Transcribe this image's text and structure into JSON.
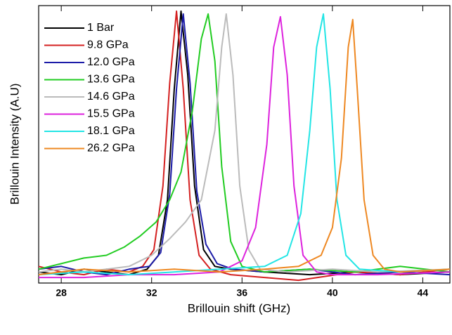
{
  "chart_data": {
    "type": "line",
    "x_label": "Brillouin shift (GHz)",
    "y_label": "Brillouin Intensity (A.U)",
    "xlim": [
      27,
      45.2
    ],
    "ylim": [
      0,
      1
    ],
    "xticks": [
      28,
      32,
      36,
      40,
      44
    ],
    "legend": "upper-left",
    "series": [
      {
        "name": "1 Bar",
        "color": "#000000",
        "x": [
          27,
          28,
          29,
          30,
          31,
          31.8,
          32.3,
          32.7,
          33.0,
          33.3,
          33.6,
          33.9,
          34.3,
          34.8,
          35.5,
          37,
          39,
          41,
          43,
          45.2
        ],
        "values": [
          0.04,
          0.03,
          0.05,
          0.04,
          0.03,
          0.05,
          0.1,
          0.3,
          0.7,
          0.98,
          0.75,
          0.35,
          0.12,
          0.06,
          0.05,
          0.04,
          0.03,
          0.04,
          0.03,
          0.04
        ]
      },
      {
        "name": "9.8 GPa",
        "color": "#d42020",
        "x": [
          27,
          28,
          29,
          30,
          31,
          31.6,
          32.1,
          32.5,
          32.8,
          33.1,
          33.4,
          33.7,
          34.1,
          34.6,
          35.5,
          37,
          38.5,
          41,
          43,
          45.2
        ],
        "values": [
          0.06,
          0.04,
          0.03,
          0.05,
          0.04,
          0.06,
          0.12,
          0.35,
          0.72,
          0.98,
          0.7,
          0.3,
          0.1,
          0.05,
          0.03,
          0.02,
          0.01,
          0.04,
          0.03,
          0.05
        ]
      },
      {
        "name": "12.0 GPa",
        "color": "#1c1ca8",
        "x": [
          27,
          28,
          29,
          30,
          31,
          31.9,
          32.4,
          32.8,
          33.1,
          33.4,
          33.7,
          34.0,
          34.4,
          34.9,
          35.6,
          37,
          39,
          41,
          43,
          45.2
        ],
        "values": [
          0.05,
          0.06,
          0.04,
          0.03,
          0.05,
          0.06,
          0.11,
          0.32,
          0.7,
          0.97,
          0.72,
          0.33,
          0.14,
          0.07,
          0.05,
          0.04,
          0.05,
          0.03,
          0.04,
          0.03
        ]
      },
      {
        "name": "13.6 GPa",
        "color": "#22cc22",
        "x": [
          27,
          28,
          29,
          30,
          30.8,
          31.5,
          32.2,
          32.8,
          33.3,
          33.8,
          34.2,
          34.5,
          34.8,
          35.1,
          35.5,
          36,
          37,
          39,
          41,
          43,
          45.2
        ],
        "values": [
          0.05,
          0.07,
          0.09,
          0.1,
          0.13,
          0.17,
          0.22,
          0.3,
          0.4,
          0.62,
          0.88,
          0.97,
          0.8,
          0.42,
          0.15,
          0.06,
          0.04,
          0.05,
          0.04,
          0.06,
          0.04
        ]
      },
      {
        "name": "14.6 GPa",
        "color": "#bbbbbb",
        "x": [
          27,
          28,
          29,
          30,
          31,
          32,
          32.8,
          33.5,
          34.2,
          34.8,
          35.1,
          35.3,
          35.6,
          35.9,
          36.3,
          36.8,
          38,
          40,
          42,
          45.2
        ],
        "values": [
          0.04,
          0.05,
          0.04,
          0.05,
          0.06,
          0.1,
          0.16,
          0.22,
          0.3,
          0.55,
          0.85,
          0.97,
          0.75,
          0.35,
          0.12,
          0.05,
          0.04,
          0.05,
          0.04,
          0.05
        ]
      },
      {
        "name": "15.5 GPa",
        "color": "#dd22dd",
        "x": [
          27,
          29,
          31,
          33,
          35,
          36,
          36.6,
          37.1,
          37.4,
          37.7,
          38.0,
          38.3,
          38.7,
          39.3,
          40,
          42,
          45.2
        ],
        "values": [
          0.02,
          0.02,
          0.03,
          0.03,
          0.04,
          0.08,
          0.2,
          0.5,
          0.85,
          0.96,
          0.75,
          0.35,
          0.1,
          0.04,
          0.03,
          0.03,
          0.04
        ]
      },
      {
        "name": "18.1 GPa",
        "color": "#22e5e5",
        "x": [
          27,
          29,
          31,
          33,
          35,
          37,
          38,
          38.6,
          39.0,
          39.3,
          39.6,
          39.9,
          40.2,
          40.6,
          41.2,
          43,
          45.2
        ],
        "values": [
          0.03,
          0.04,
          0.03,
          0.04,
          0.05,
          0.06,
          0.1,
          0.25,
          0.55,
          0.85,
          0.97,
          0.7,
          0.3,
          0.1,
          0.05,
          0.04,
          0.05
        ]
      },
      {
        "name": "26.2 GPa",
        "color": "#ee8822",
        "x": [
          27,
          29,
          31,
          33,
          35,
          37,
          38.5,
          39.5,
          40.0,
          40.4,
          40.7,
          40.9,
          41.1,
          41.4,
          41.8,
          42.3,
          43,
          45.2
        ],
        "values": [
          0.03,
          0.05,
          0.04,
          0.05,
          0.04,
          0.05,
          0.06,
          0.1,
          0.2,
          0.45,
          0.85,
          0.95,
          0.7,
          0.3,
          0.1,
          0.05,
          0.04,
          0.05
        ]
      }
    ]
  }
}
